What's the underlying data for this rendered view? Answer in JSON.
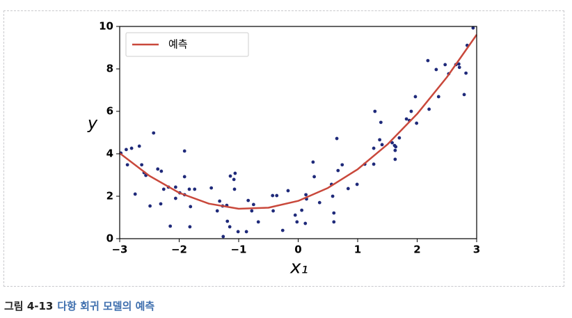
{
  "chart_data": {
    "type": "scatter",
    "xlabel": "x₁",
    "ylabel": "y",
    "xlim": [
      -3,
      3
    ],
    "ylim": [
      0,
      10
    ],
    "xticks": [
      {
        "value": -3,
        "label": "−3"
      },
      {
        "value": -2,
        "label": "−2"
      },
      {
        "value": -1,
        "label": "−1"
      },
      0,
      1,
      2,
      3
    ],
    "yticks": [
      0,
      2,
      4,
      6,
      8,
      10
    ],
    "legend": "upper left",
    "series": [
      {
        "type": "scatter",
        "color": "#1f2a7a",
        "x": [
          -2.98,
          -2.89,
          -2.8,
          -2.87,
          -2.67,
          -2.74,
          -2.63,
          -2.59,
          -2.56,
          -2.43,
          -2.49,
          -2.36,
          -2.3,
          -2.31,
          -2.26,
          -2.18,
          -2.15,
          -2.06,
          -2.06,
          -1.99,
          -1.91,
          -1.91,
          -1.91,
          -1.83,
          -1.81,
          -1.82,
          -1.74,
          -1.46,
          -1.36,
          -1.32,
          -1.27,
          -1.2,
          -1.26,
          -1.19,
          -1.15,
          -1.14,
          -1.08,
          -1.06,
          -1.07,
          -1.01,
          -0.87,
          -0.84,
          -0.78,
          -0.75,
          -0.67,
          -0.43,
          -0.36,
          -0.42,
          -0.26,
          -0.17,
          -0.05,
          -0.02,
          0.06,
          0.12,
          0.13,
          0.14,
          0.25,
          0.27,
          0.36,
          0.56,
          0.58,
          0.6,
          0.6,
          0.65,
          0.67,
          0.74,
          0.84,
          0.99,
          1.12,
          1.27,
          1.27,
          1.29,
          1.39,
          1.37,
          1.41,
          1.58,
          1.62,
          1.64,
          1.63,
          1.63,
          1.7,
          1.82,
          1.87,
          1.9,
          1.97,
          1.99,
          2.18,
          2.2,
          2.32,
          2.36,
          2.47,
          2.53,
          2.65,
          2.7,
          2.71,
          2.79,
          2.82,
          2.84,
          2.94
        ],
        "values": [
          4.03,
          4.2,
          4.26,
          3.48,
          4.36,
          2.1,
          3.48,
          3.11,
          2.98,
          4.98,
          1.54,
          3.28,
          3.18,
          1.64,
          2.33,
          2.43,
          0.59,
          2.43,
          1.9,
          2.16,
          4.13,
          2.92,
          2.07,
          2.33,
          1.51,
          0.56,
          2.33,
          2.39,
          1.31,
          1.77,
          1.54,
          1.57,
          0.1,
          0.82,
          0.56,
          2.95,
          2.79,
          3.08,
          2.33,
          0.33,
          0.33,
          1.8,
          1.31,
          1.61,
          0.79,
          2.03,
          2.03,
          1.31,
          0.39,
          2.26,
          1.11,
          0.79,
          1.34,
          0.72,
          2.07,
          1.87,
          3.61,
          2.92,
          1.7,
          2.56,
          2.0,
          1.21,
          0.79,
          4.72,
          3.21,
          3.48,
          2.36,
          2.56,
          3.51,
          4.26,
          3.51,
          6.0,
          5.48,
          4.66,
          4.43,
          4.52,
          4.39,
          4.33,
          4.16,
          3.74,
          4.75,
          5.64,
          5.57,
          6.0,
          6.69,
          5.44,
          8.39,
          6.1,
          7.97,
          6.69,
          8.2,
          7.77,
          8.2,
          8.23,
          8.07,
          6.79,
          7.8,
          9.11,
          9.93
        ]
      },
      {
        "type": "line",
        "name": "예측",
        "color": "#c9483b",
        "x": [
          -3,
          -2.5,
          -2,
          -1.5,
          -1,
          -0.5,
          0,
          0.5,
          1,
          1.5,
          2,
          2.5,
          3
        ],
        "values": [
          4.03,
          2.96,
          2.16,
          1.65,
          1.41,
          1.46,
          1.78,
          2.39,
          3.27,
          4.44,
          5.88,
          7.61,
          9.61
        ]
      }
    ]
  },
  "caption": {
    "label": "그림 4-13",
    "text": "다항 회귀 모델의 예측"
  }
}
